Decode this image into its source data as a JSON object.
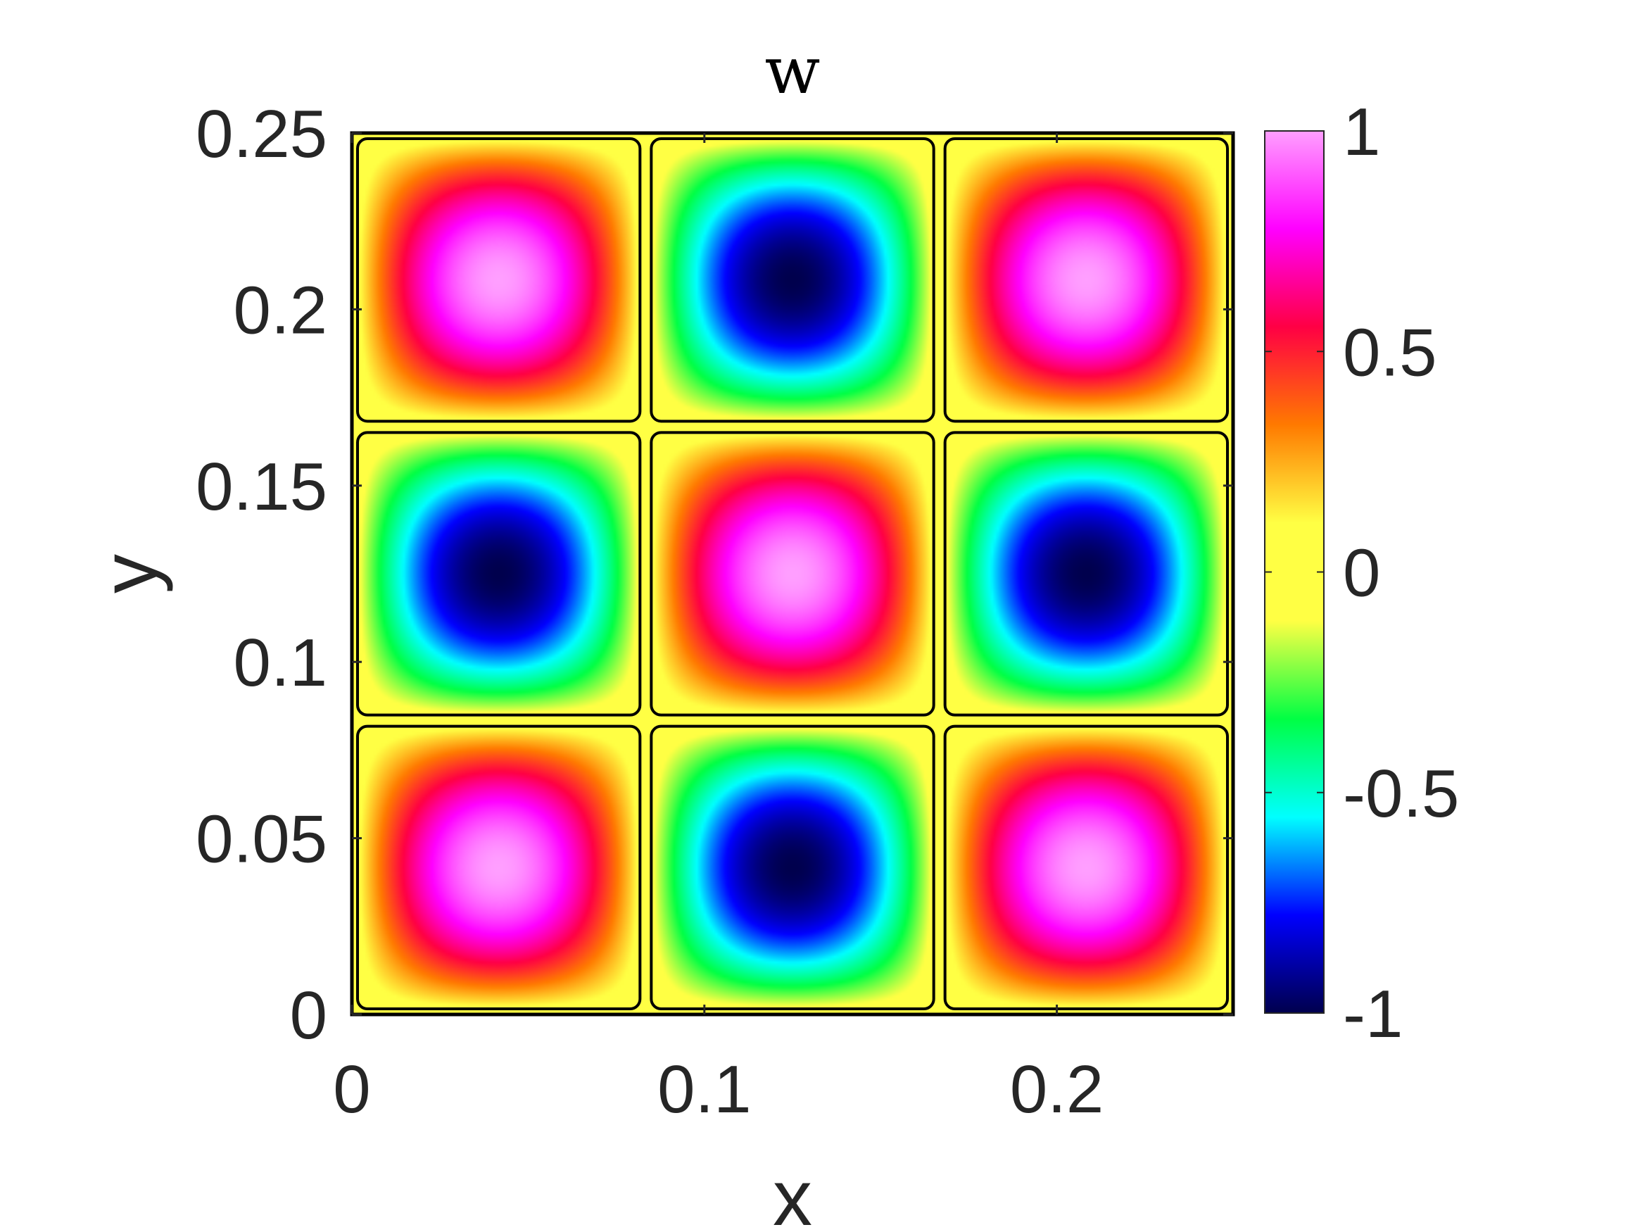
{
  "chart_data": {
    "type": "heatmap",
    "title": "w",
    "xlabel": "x",
    "ylabel": "y",
    "xlim": [
      0,
      0.25
    ],
    "ylim": [
      0,
      0.25
    ],
    "x_ticks": [
      0,
      0.1,
      0.2
    ],
    "x_tick_labels": [
      "0",
      "0.1",
      "0.2"
    ],
    "y_ticks": [
      0,
      0.05,
      0.1,
      0.15,
      0.2,
      0.25
    ],
    "y_tick_labels": [
      "0",
      "0.05",
      "0.1",
      "0.15",
      "0.2",
      "0.25"
    ],
    "grid": false,
    "colorbar": {
      "range": [
        -1,
        1
      ],
      "ticks": [
        -1,
        -0.5,
        0,
        0.5,
        1
      ],
      "tick_labels": [
        "-1",
        "-0.5",
        "0",
        "0.5",
        "1"
      ],
      "placement": "right",
      "colormap": [
        "#00004d",
        "#0000ff",
        "#00ffff",
        "#00ff44",
        "#ffff44",
        "#ffff44",
        "#ff7a00",
        "#ff0044",
        "#ff00ff",
        "#ff9fff"
      ]
    },
    "field": {
      "description_of_function": "w = cos(2*pi*x/L) * cos(2*pi*y/L) style cellular pattern, 3x3 cells",
      "cells": [
        {
          "x": 0.0417,
          "y": 0.2083,
          "value": 0.95
        },
        {
          "x": 0.125,
          "y": 0.2083,
          "value": -0.95
        },
        {
          "x": 0.2083,
          "y": 0.2083,
          "value": 0.95
        },
        {
          "x": 0.0417,
          "y": 0.125,
          "value": -0.95
        },
        {
          "x": 0.125,
          "y": 0.125,
          "value": 0.95
        },
        {
          "x": 0.2083,
          "y": 0.125,
          "value": -0.95
        },
        {
          "x": 0.0417,
          "y": 0.0417,
          "value": 0.95
        },
        {
          "x": 0.125,
          "y": 0.0417,
          "value": -0.95
        },
        {
          "x": 0.2083,
          "y": 0.0417,
          "value": 0.95
        }
      ],
      "zero_contour": true
    }
  }
}
